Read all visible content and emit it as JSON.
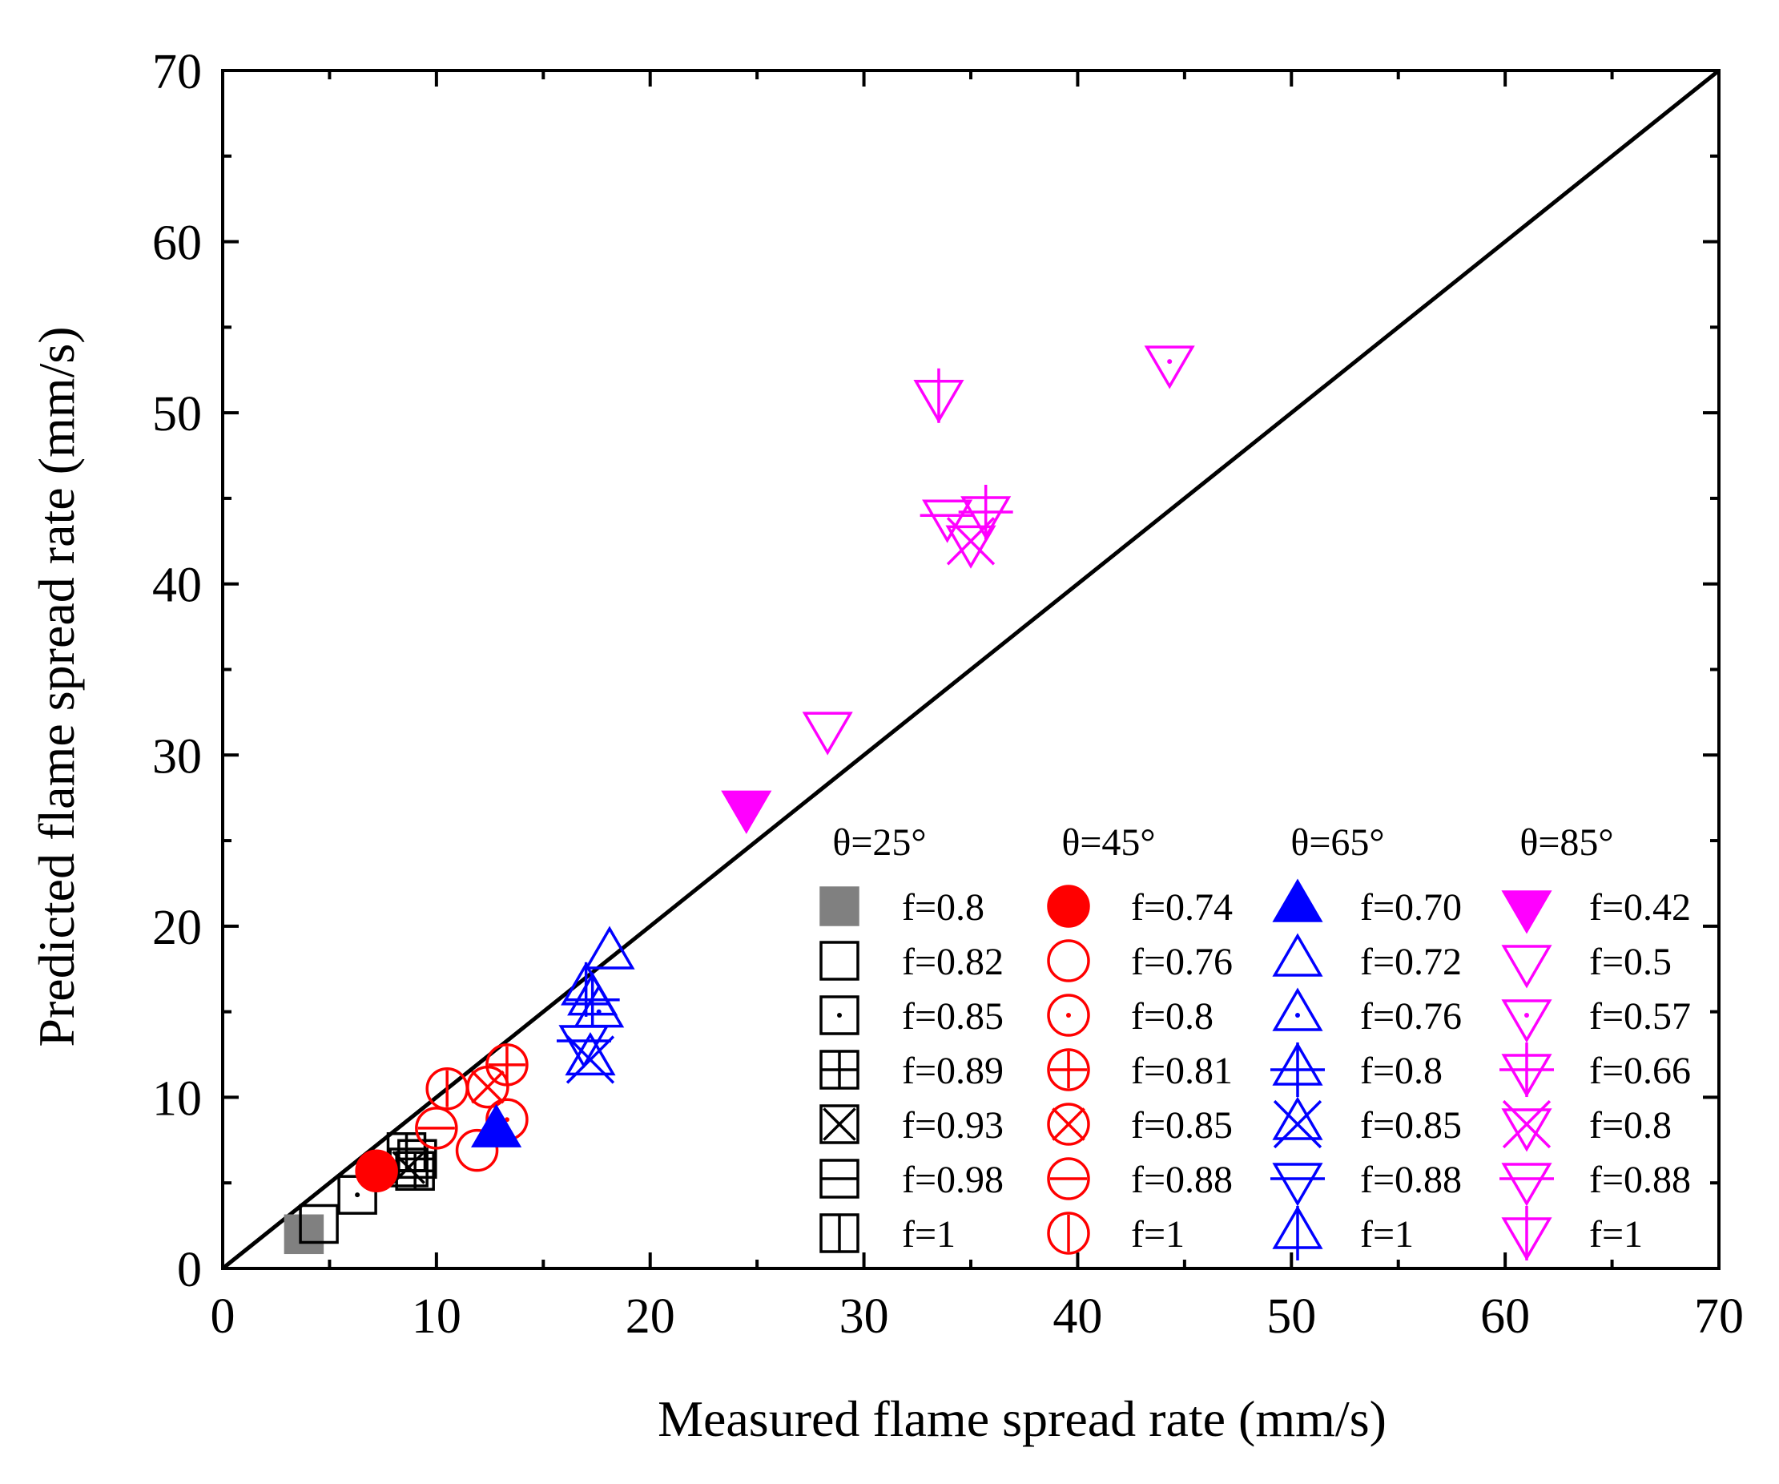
{
  "chart_data": {
    "type": "scatter",
    "title": "",
    "xlabel": "Measured flame spread rate (mm/s)",
    "ylabel": "Predicted flame spread rate (mm/s)",
    "xlim": [
      0,
      70
    ],
    "ylim": [
      0,
      70
    ],
    "xticks": [
      0,
      10,
      20,
      30,
      40,
      50,
      60,
      70
    ],
    "yticks": [
      0,
      10,
      20,
      30,
      40,
      50,
      60,
      70
    ],
    "minor_ticks": true,
    "grid": false,
    "reference_line": {
      "from": [
        0,
        0
      ],
      "to": [
        70,
        70
      ],
      "color": "#000000"
    },
    "legend_placement": "bottom-right",
    "legend_columns": [
      "θ=25°",
      "θ=45°",
      "θ=65°",
      "θ=85°"
    ],
    "series": [
      {
        "name": "f=0.8",
        "group": 0,
        "color": "#808080",
        "marker": "square",
        "fill": true,
        "decor": "none",
        "points": [
          [
            3.8,
            2.0
          ]
        ]
      },
      {
        "name": "f=0.82",
        "group": 0,
        "color": "#000000",
        "marker": "square",
        "fill": false,
        "decor": "none",
        "points": [
          [
            4.5,
            2.6
          ]
        ]
      },
      {
        "name": "f=0.85",
        "group": 0,
        "color": "#000000",
        "marker": "square",
        "fill": false,
        "decor": "dot",
        "points": [
          [
            6.3,
            4.3
          ]
        ]
      },
      {
        "name": "f=0.89",
        "group": 0,
        "color": "#000000",
        "marker": "square",
        "fill": false,
        "decor": "plus",
        "points": [
          [
            9.0,
            5.7
          ]
        ]
      },
      {
        "name": "f=0.93",
        "group": 0,
        "color": "#000000",
        "marker": "square",
        "fill": false,
        "decor": "x",
        "points": [
          [
            8.7,
            5.9
          ]
        ]
      },
      {
        "name": "f=0.98",
        "group": 0,
        "color": "#000000",
        "marker": "square",
        "fill": false,
        "decor": "hline",
        "points": [
          [
            9.1,
            6.4
          ]
        ]
      },
      {
        "name": "f=1",
        "group": 0,
        "color": "#000000",
        "marker": "square",
        "fill": false,
        "decor": "vline",
        "points": [
          [
            8.6,
            6.8
          ]
        ]
      },
      {
        "name": "f=0.74",
        "group": 1,
        "color": "#ff0000",
        "marker": "circle",
        "fill": true,
        "decor": "none",
        "points": [
          [
            7.2,
            5.7
          ]
        ]
      },
      {
        "name": "f=0.76",
        "group": 1,
        "color": "#ff0000",
        "marker": "circle",
        "fill": false,
        "decor": "none",
        "points": [
          [
            11.9,
            6.9
          ]
        ]
      },
      {
        "name": "f=0.8",
        "group": 1,
        "color": "#ff0000",
        "marker": "circle",
        "fill": false,
        "decor": "dot",
        "points": [
          [
            13.3,
            8.7
          ]
        ]
      },
      {
        "name": "f=0.81",
        "group": 1,
        "color": "#ff0000",
        "marker": "circle",
        "fill": false,
        "decor": "plus",
        "points": [
          [
            13.3,
            11.9
          ]
        ]
      },
      {
        "name": "f=0.85",
        "group": 1,
        "color": "#ff0000",
        "marker": "circle",
        "fill": false,
        "decor": "x",
        "points": [
          [
            12.4,
            10.6
          ]
        ]
      },
      {
        "name": "f=0.88",
        "group": 1,
        "color": "#ff0000",
        "marker": "circle",
        "fill": false,
        "decor": "hline",
        "points": [
          [
            10.0,
            8.2
          ]
        ]
      },
      {
        "name": "f=1",
        "group": 1,
        "color": "#ff0000",
        "marker": "circle",
        "fill": false,
        "decor": "vline",
        "points": [
          [
            10.5,
            10.5
          ]
        ]
      },
      {
        "name": "f=0.70",
        "group": 2,
        "color": "#0000ff",
        "marker": "triangle",
        "fill": true,
        "decor": "none",
        "points": [
          [
            12.8,
            8.0
          ]
        ]
      },
      {
        "name": "f=0.72",
        "group": 2,
        "color": "#0000ff",
        "marker": "triangle",
        "fill": false,
        "decor": "none",
        "points": [
          [
            18.1,
            18.4
          ]
        ]
      },
      {
        "name": "f=0.76",
        "group": 2,
        "color": "#0000ff",
        "marker": "triangle",
        "fill": false,
        "decor": "dot",
        "points": [
          [
            17.6,
            15.0
          ]
        ]
      },
      {
        "name": "f=0.8",
        "group": 2,
        "color": "#0000ff",
        "marker": "triangle",
        "fill": false,
        "decor": "plus",
        "points": [
          [
            17.3,
            15.7
          ]
        ]
      },
      {
        "name": "f=0.85",
        "group": 2,
        "color": "#0000ff",
        "marker": "triangle",
        "fill": false,
        "decor": "x",
        "points": [
          [
            17.2,
            12.2
          ]
        ]
      },
      {
        "name": "f=0.88",
        "group": 2,
        "color": "#0000ff",
        "marker": "down",
        "fill": false,
        "decor": "hline",
        "points": [
          [
            16.9,
            13.3
          ]
        ]
      },
      {
        "name": "f=1",
        "group": 2,
        "color": "#0000ff",
        "marker": "triangle",
        "fill": false,
        "decor": "vline",
        "points": [
          [
            17.0,
            16.3
          ]
        ]
      },
      {
        "name": "f=0.42",
        "group": 3,
        "color": "#ff00ff",
        "marker": "down",
        "fill": true,
        "decor": "none",
        "points": [
          [
            24.5,
            27.0
          ]
        ]
      },
      {
        "name": "f=0.5",
        "group": 3,
        "color": "#ff00ff",
        "marker": "down",
        "fill": false,
        "decor": "none",
        "points": [
          [
            28.3,
            31.6
          ]
        ]
      },
      {
        "name": "f=0.57",
        "group": 3,
        "color": "#ff00ff",
        "marker": "down",
        "fill": false,
        "decor": "dot",
        "points": [
          [
            44.3,
            53.0
          ]
        ]
      },
      {
        "name": "f=0.66",
        "group": 3,
        "color": "#ff00ff",
        "marker": "down",
        "fill": false,
        "decor": "plus",
        "points": [
          [
            35.7,
            44.2
          ]
        ]
      },
      {
        "name": "f=0.8",
        "group": 3,
        "color": "#ff00ff",
        "marker": "down",
        "fill": false,
        "decor": "x",
        "points": [
          [
            35.0,
            42.5
          ]
        ]
      },
      {
        "name": "f=0.88",
        "group": 3,
        "color": "#ff00ff",
        "marker": "down",
        "fill": false,
        "decor": "hline",
        "points": [
          [
            33.9,
            44.0
          ]
        ]
      },
      {
        "name": "f=1",
        "group": 3,
        "color": "#ff00ff",
        "marker": "down",
        "fill": false,
        "decor": "vline",
        "points": [
          [
            33.5,
            51.0
          ]
        ]
      }
    ]
  }
}
